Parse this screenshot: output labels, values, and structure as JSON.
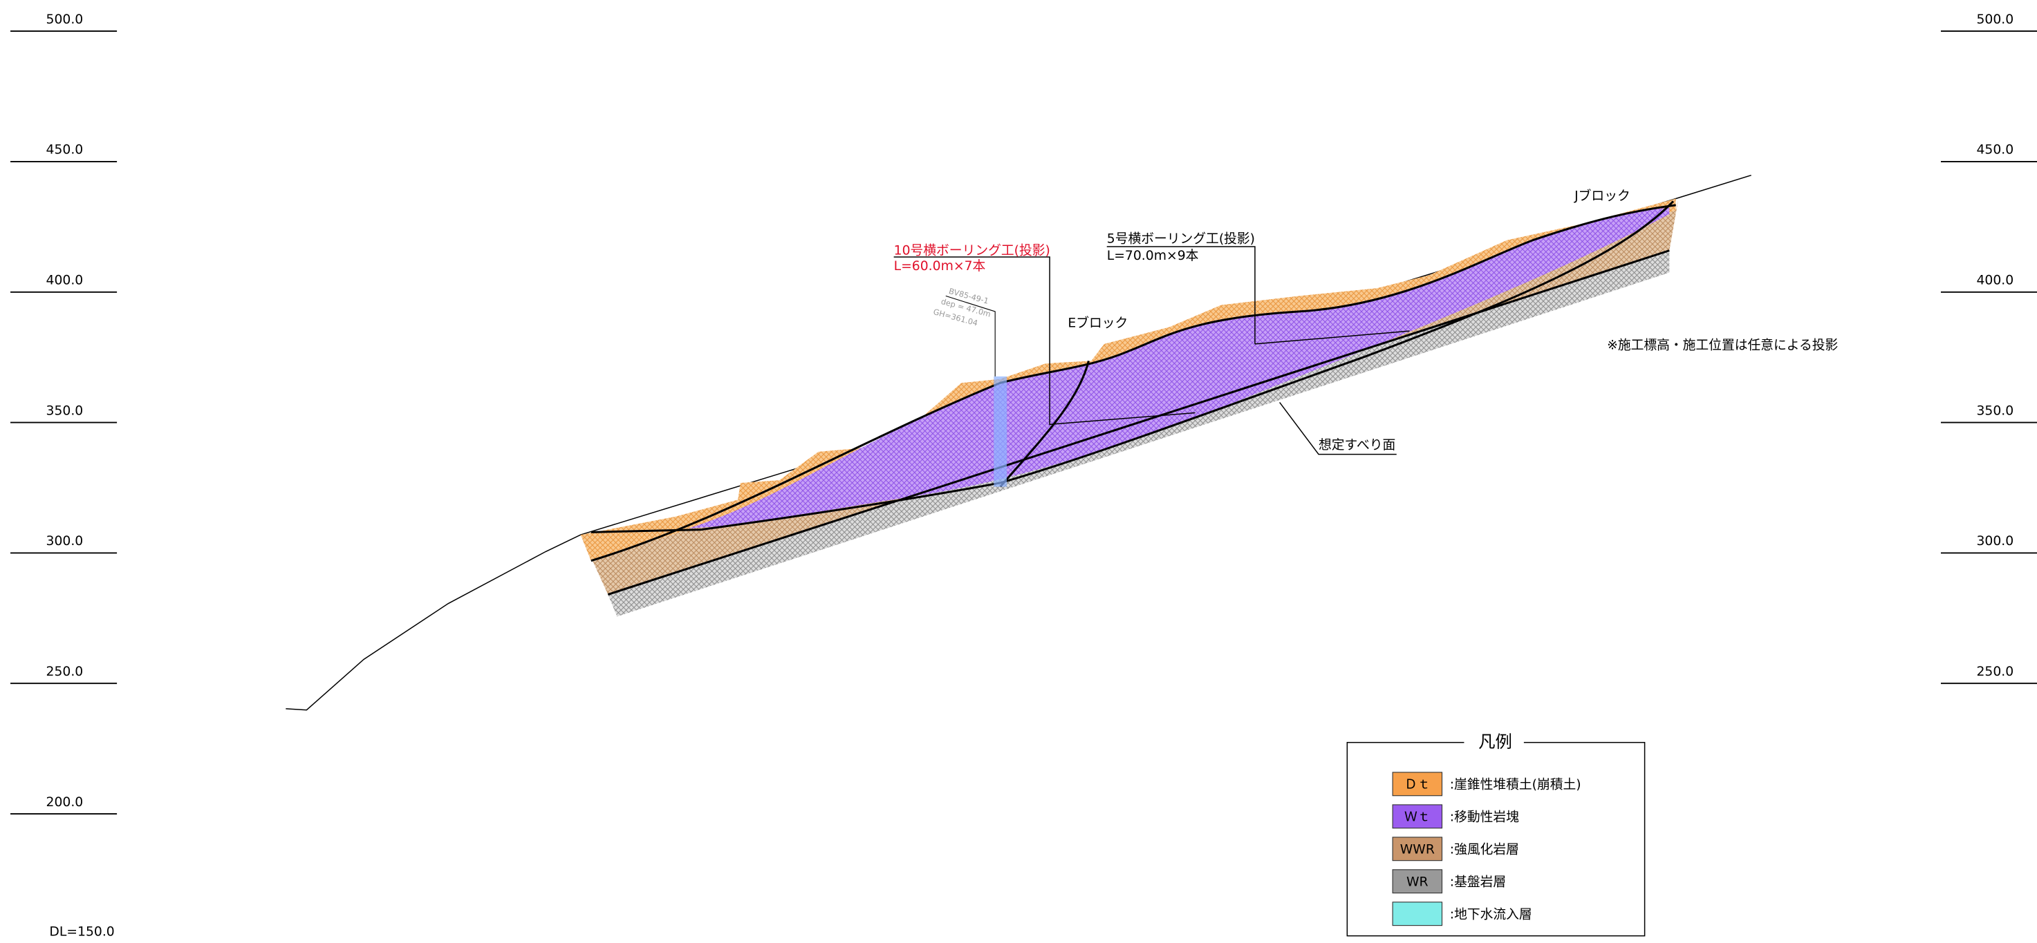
{
  "elevation_scale": {
    "left": [
      "500.0",
      "450.0",
      "400.0",
      "350.0",
      "300.0",
      "250.0",
      "200.0"
    ],
    "right": [
      "500.0",
      "450.0",
      "400.0",
      "350.0",
      "300.0",
      "250.0"
    ],
    "datum": "DL=150.0"
  },
  "annotations": {
    "boring_10": [
      "10号横ボーリング工(投影)",
      "L=60.0m×7本"
    ],
    "boring_5": [
      "5号横ボーリング工(投影)",
      "L=70.0m×9本"
    ],
    "borehole": [
      "BV85-49-1",
      "dep = 47.0m",
      "GH=361.04"
    ],
    "block_e": "Eブロック",
    "block_j": "Jブロック",
    "note": "※施工標高・施工位置は任意による投影",
    "slip_surface": "想定すべり面"
  },
  "legend": {
    "title": "凡例",
    "items": [
      {
        "code": "Ｄｔ",
        "label": ":崖錐性堆積土(崩積土)",
        "color": "#f7a04a"
      },
      {
        "code": "Ｗｔ",
        "label": ":移動性岩塊",
        "color": "#9b5cf0"
      },
      {
        "code": "WWR",
        "label": ":強風化岩層",
        "color": "#c9956a"
      },
      {
        "code": "WR",
        "label": ":基盤岩層",
        "color": "#999999"
      },
      {
        "label": ":地下水流入層",
        "color": "#80ece8"
      }
    ]
  }
}
